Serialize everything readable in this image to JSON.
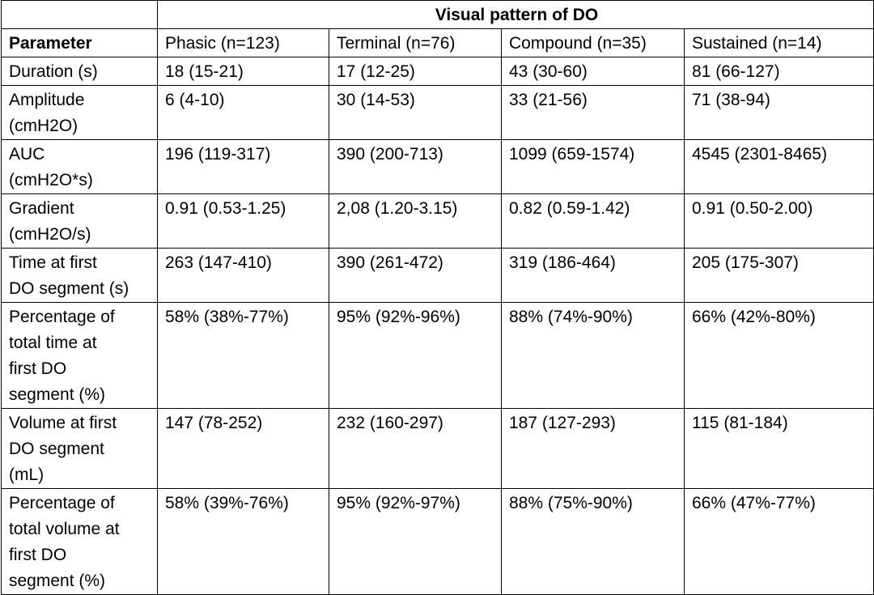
{
  "table": {
    "group_header": "Visual pattern of DO",
    "columns": [
      "Parameter",
      "Phasic (n=123)",
      "Terminal (n=76)",
      "Compound (n=35)",
      "Sustained (n=14)"
    ],
    "rows": [
      {
        "label": [
          "Duration (s)"
        ],
        "values": [
          "18 (15-21)",
          "17 (12-25)",
          "43 (30-60)",
          "81 (66-127)"
        ]
      },
      {
        "label": [
          "Amplitude",
          "(cmH2O)"
        ],
        "values": [
          "6 (4-10)",
          "30 (14-53)",
          "33 (21-56)",
          "71 (38-94)"
        ]
      },
      {
        "label": [
          "AUC",
          "(cmH2O*s)"
        ],
        "values": [
          "196 (119-317)",
          "390 (200-713)",
          "1099 (659-1574)",
          "4545 (2301-8465)"
        ]
      },
      {
        "label": [
          "Gradient",
          "(cmH2O/s)"
        ],
        "values": [
          "0.91 (0.53-1.25)",
          "2,08 (1.20-3.15)",
          "0.82 (0.59-1.42)",
          "0.91 (0.50-2.00)"
        ]
      },
      {
        "label": [
          "Time at first",
          "DO segment (s)"
        ],
        "values": [
          "263 (147-410)",
          "390 (261-472)",
          "319 (186-464)",
          "205 (175-307)"
        ]
      },
      {
        "label": [
          "Percentage of",
          "total time at",
          "first DO",
          "segment (%)"
        ],
        "values": [
          "58% (38%-77%)",
          "95% (92%-96%)",
          "88% (74%-90%)",
          "66% (42%-80%)"
        ]
      },
      {
        "label": [
          "Volume at first",
          "DO segment",
          "(mL)"
        ],
        "values": [
          "147 (78-252)",
          "232 (160-297)",
          "187 (127-293)",
          "115 (81-184)"
        ]
      },
      {
        "label": [
          "Percentage of",
          "total volume at",
          "first DO",
          "segment (%)"
        ],
        "values": [
          "58% (39%-76%)",
          "95% (92%-97%)",
          "88% (75%-90%)",
          "66% (47%-77%)"
        ]
      }
    ]
  }
}
